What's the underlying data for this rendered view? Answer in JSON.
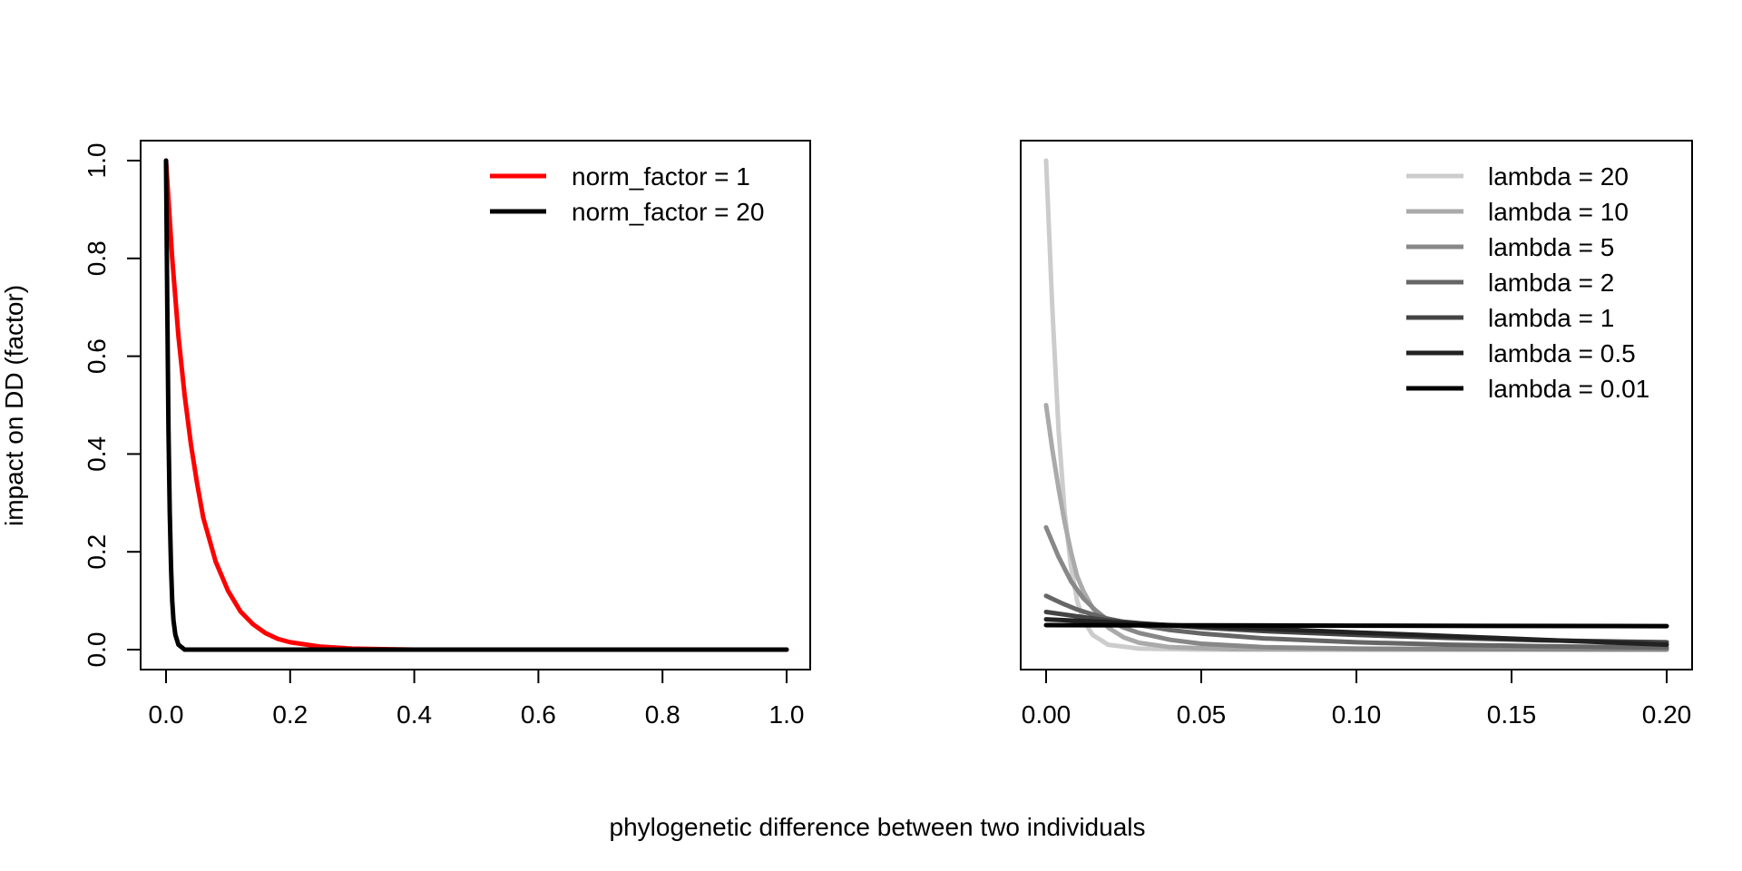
{
  "figure": {
    "ylabel": "impact on DD (factor)",
    "xlabel": "phylogenetic difference between two individuals"
  },
  "chart_data": [
    {
      "type": "line",
      "xlim": [
        0,
        1
      ],
      "ylim": [
        0,
        1
      ],
      "x_ticks": [
        0,
        0.2,
        0.4,
        0.6,
        0.8,
        1
      ],
      "x_tick_labels": [
        "0.0",
        "0.2",
        "0.4",
        "0.6",
        "0.8",
        "1.0"
      ],
      "y_ticks": [
        0,
        0.2,
        0.4,
        0.6,
        0.8,
        1
      ],
      "y_tick_labels": [
        "0.0",
        "0.2",
        "0.4",
        "0.6",
        "0.8",
        "1.0"
      ],
      "legend_position": "top-right",
      "series": [
        {
          "name": "norm_factor = 1",
          "color": "#ff0000",
          "x": [
            0,
            0.01,
            0.02,
            0.03,
            0.04,
            0.05,
            0.06,
            0.08,
            0.1,
            0.12,
            0.14,
            0.16,
            0.18,
            0.2,
            0.25,
            0.3,
            0.35,
            0.4,
            0.5,
            0.6,
            0.7,
            0.8,
            0.9,
            1.0
          ],
          "y": [
            1,
            0.8,
            0.64,
            0.52,
            0.42,
            0.34,
            0.27,
            0.18,
            0.12,
            0.078,
            0.052,
            0.034,
            0.022,
            0.015,
            0.006,
            0.002,
            0.001,
            0,
            0,
            0,
            0,
            0,
            0,
            0
          ]
        },
        {
          "name": "norm_factor = 20",
          "color": "#000000",
          "x": [
            0,
            0.002,
            0.004,
            0.006,
            0.008,
            0.01,
            0.012,
            0.015,
            0.02,
            0.03,
            0.05,
            0.1,
            0.2,
            0.4,
            0.6,
            0.8,
            1.0
          ],
          "y": [
            1,
            0.7,
            0.45,
            0.28,
            0.17,
            0.1,
            0.06,
            0.03,
            0.01,
            0,
            0,
            0,
            0,
            0,
            0,
            0,
            0
          ]
        }
      ]
    },
    {
      "type": "line",
      "xlim": [
        0,
        0.2
      ],
      "ylim": [
        0,
        1
      ],
      "x_ticks": [
        0,
        0.05,
        0.1,
        0.15,
        0.2
      ],
      "x_tick_labels": [
        "0.00",
        "0.05",
        "0.10",
        "0.15",
        "0.20"
      ],
      "legend_position": "top-right",
      "series": [
        {
          "name": "lambda = 20",
          "color": "#cccccc",
          "x": [
            0,
            0.002,
            0.004,
            0.006,
            0.008,
            0.01,
            0.012,
            0.015,
            0.02,
            0.03,
            0.05,
            0.1,
            0.2
          ],
          "y": [
            1,
            0.7,
            0.45,
            0.28,
            0.17,
            0.1,
            0.06,
            0.03,
            0.01,
            0.002,
            0,
            0,
            0
          ]
        },
        {
          "name": "lambda = 10",
          "color": "#aaaaaa",
          "x": [
            0,
            0.002,
            0.004,
            0.006,
            0.008,
            0.01,
            0.012,
            0.015,
            0.02,
            0.025,
            0.03,
            0.04,
            0.06,
            0.1,
            0.2
          ],
          "y": [
            0.5,
            0.41,
            0.33,
            0.26,
            0.2,
            0.15,
            0.12,
            0.085,
            0.045,
            0.025,
            0.014,
            0.005,
            0.001,
            0,
            0
          ]
        },
        {
          "name": "lambda = 5",
          "color": "#888888",
          "x": [
            0,
            0.004,
            0.008,
            0.012,
            0.016,
            0.02,
            0.025,
            0.03,
            0.04,
            0.05,
            0.07,
            0.1,
            0.15,
            0.2
          ],
          "y": [
            0.25,
            0.19,
            0.14,
            0.105,
            0.08,
            0.06,
            0.045,
            0.034,
            0.02,
            0.012,
            0.005,
            0.002,
            0.001,
            0
          ]
        },
        {
          "name": "lambda = 2",
          "color": "#666666",
          "x": [
            0,
            0.005,
            0.01,
            0.015,
            0.02,
            0.03,
            0.04,
            0.05,
            0.07,
            0.1,
            0.13,
            0.16,
            0.2
          ],
          "y": [
            0.11,
            0.095,
            0.082,
            0.072,
            0.063,
            0.05,
            0.04,
            0.033,
            0.023,
            0.015,
            0.01,
            0.007,
            0.004
          ]
        },
        {
          "name": "lambda = 1",
          "color": "#444444",
          "x": [
            0,
            0.01,
            0.02,
            0.03,
            0.05,
            0.07,
            0.1,
            0.13,
            0.16,
            0.2
          ],
          "y": [
            0.077,
            0.068,
            0.06,
            0.054,
            0.045,
            0.038,
            0.03,
            0.024,
            0.019,
            0.015
          ]
        },
        {
          "name": "lambda = 0.5",
          "color": "#222222",
          "x": [
            0,
            0.02,
            0.04,
            0.06,
            0.08,
            0.1,
            0.12,
            0.14,
            0.16,
            0.18,
            0.2
          ],
          "y": [
            0.062,
            0.056,
            0.05,
            0.045,
            0.04,
            0.035,
            0.03,
            0.025,
            0.02,
            0.015,
            0.01
          ]
        },
        {
          "name": "lambda = 0.01",
          "color": "#000000",
          "x": [
            0,
            0.05,
            0.1,
            0.15,
            0.2
          ],
          "y": [
            0.05,
            0.0495,
            0.049,
            0.0485,
            0.048
          ]
        }
      ]
    }
  ]
}
